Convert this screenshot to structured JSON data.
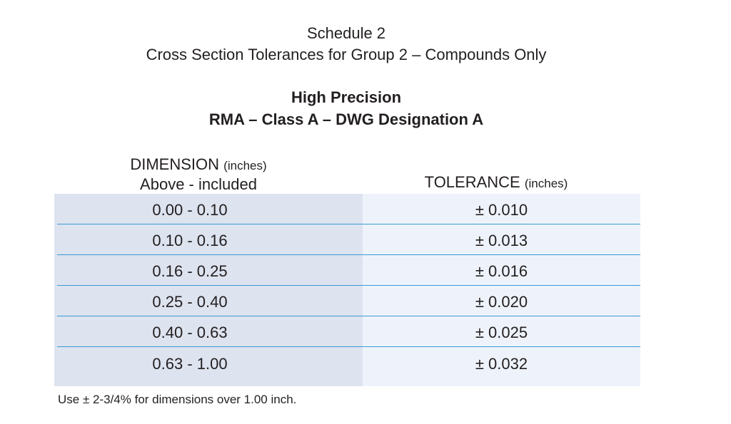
{
  "header": {
    "schedule": "Schedule 2",
    "subtitle": "Cross Section Tolerances for Group 2 – Compounds Only",
    "precision": "High Precision",
    "classification": "RMA – Class A – DWG Designation A"
  },
  "table": {
    "dimension_header": "DIMENSION",
    "dimension_unit": "(inches)",
    "dimension_subheader": "Above - included",
    "tolerance_header": "TOLERANCE",
    "tolerance_unit": "(inches)",
    "rows": [
      {
        "dimension": "0.00 - 0.10",
        "tolerance": "± 0.010"
      },
      {
        "dimension": "0.10 - 0.16",
        "tolerance": "± 0.013"
      },
      {
        "dimension": "0.16 - 0.25",
        "tolerance": "± 0.016"
      },
      {
        "dimension": "0.25 - 0.40",
        "tolerance": "± 0.020"
      },
      {
        "dimension": "0.40 - 0.63",
        "tolerance": "± 0.025"
      },
      {
        "dimension": "0.63 - 1.00",
        "tolerance": "± 0.032"
      }
    ]
  },
  "footnote": "Use ± 2-3/4% for dimensions over 1.00 inch.",
  "colors": {
    "left_column_bg": "#dde3ef",
    "right_column_bg": "#eef3fb",
    "divider": "#3a9bd5"
  }
}
